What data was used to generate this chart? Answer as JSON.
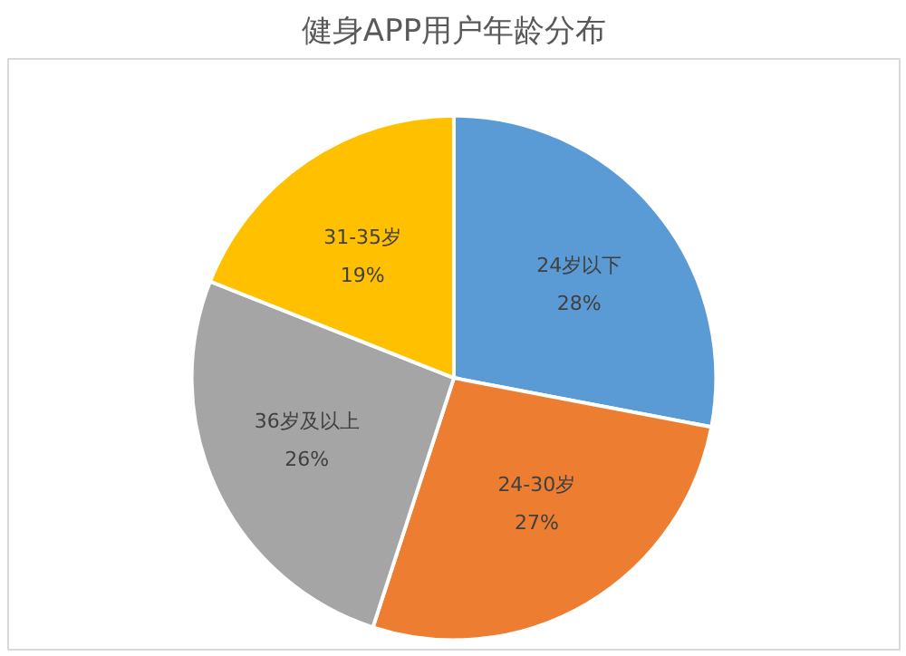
{
  "chart_data": {
    "type": "pie",
    "title": "健身APP用户年龄分布",
    "categories": [
      "24岁以下",
      "24-30岁",
      "36岁及以上",
      "31-35岁"
    ],
    "values": [
      28,
      27,
      26,
      19
    ],
    "value_labels": [
      "28%",
      "27%",
      "26%",
      "19%"
    ],
    "colors": [
      "#5b9bd5",
      "#ed7d31",
      "#a5a5a5",
      "#ffc000"
    ]
  }
}
